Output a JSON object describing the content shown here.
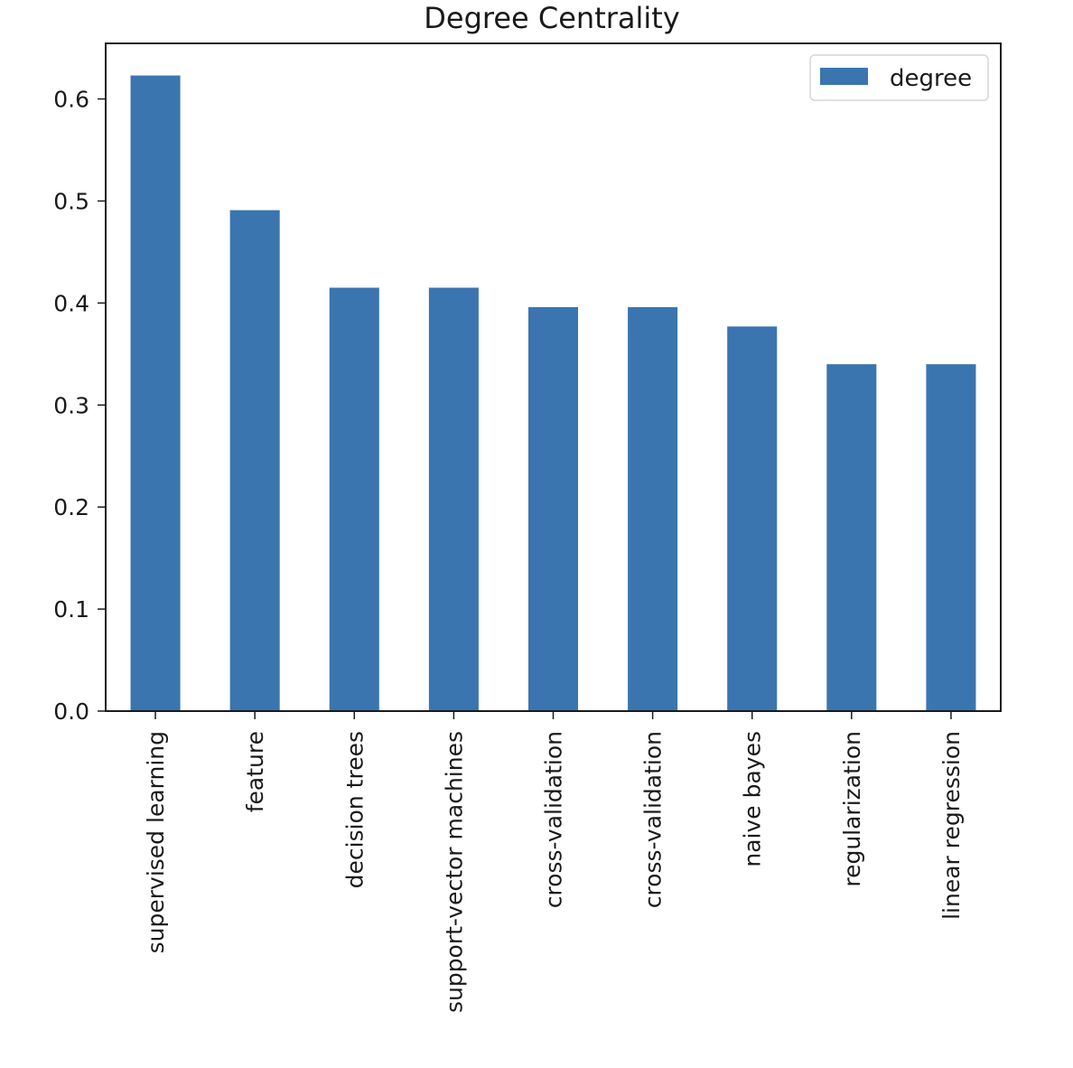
{
  "chart_data": {
    "type": "bar",
    "title": "Degree Centrality",
    "xlabel": "",
    "ylabel": "",
    "categories": [
      "supervised learning",
      "feature",
      "decision trees",
      "support-vector machines",
      "cross-validation",
      "cross-validation",
      "naive bayes",
      "regularization",
      "linear regression"
    ],
    "series": [
      {
        "name": "degree",
        "color": "#3a75b0",
        "values": [
          0.623,
          0.491,
          0.415,
          0.415,
          0.396,
          0.396,
          0.377,
          0.34,
          0.34
        ]
      }
    ],
    "ylim": [
      0,
      0.6545
    ],
    "yticks": [
      "0.0",
      "0.1",
      "0.2",
      "0.3",
      "0.4",
      "0.5",
      "0.6"
    ],
    "legend_position": "top-right",
    "grid": false
  }
}
